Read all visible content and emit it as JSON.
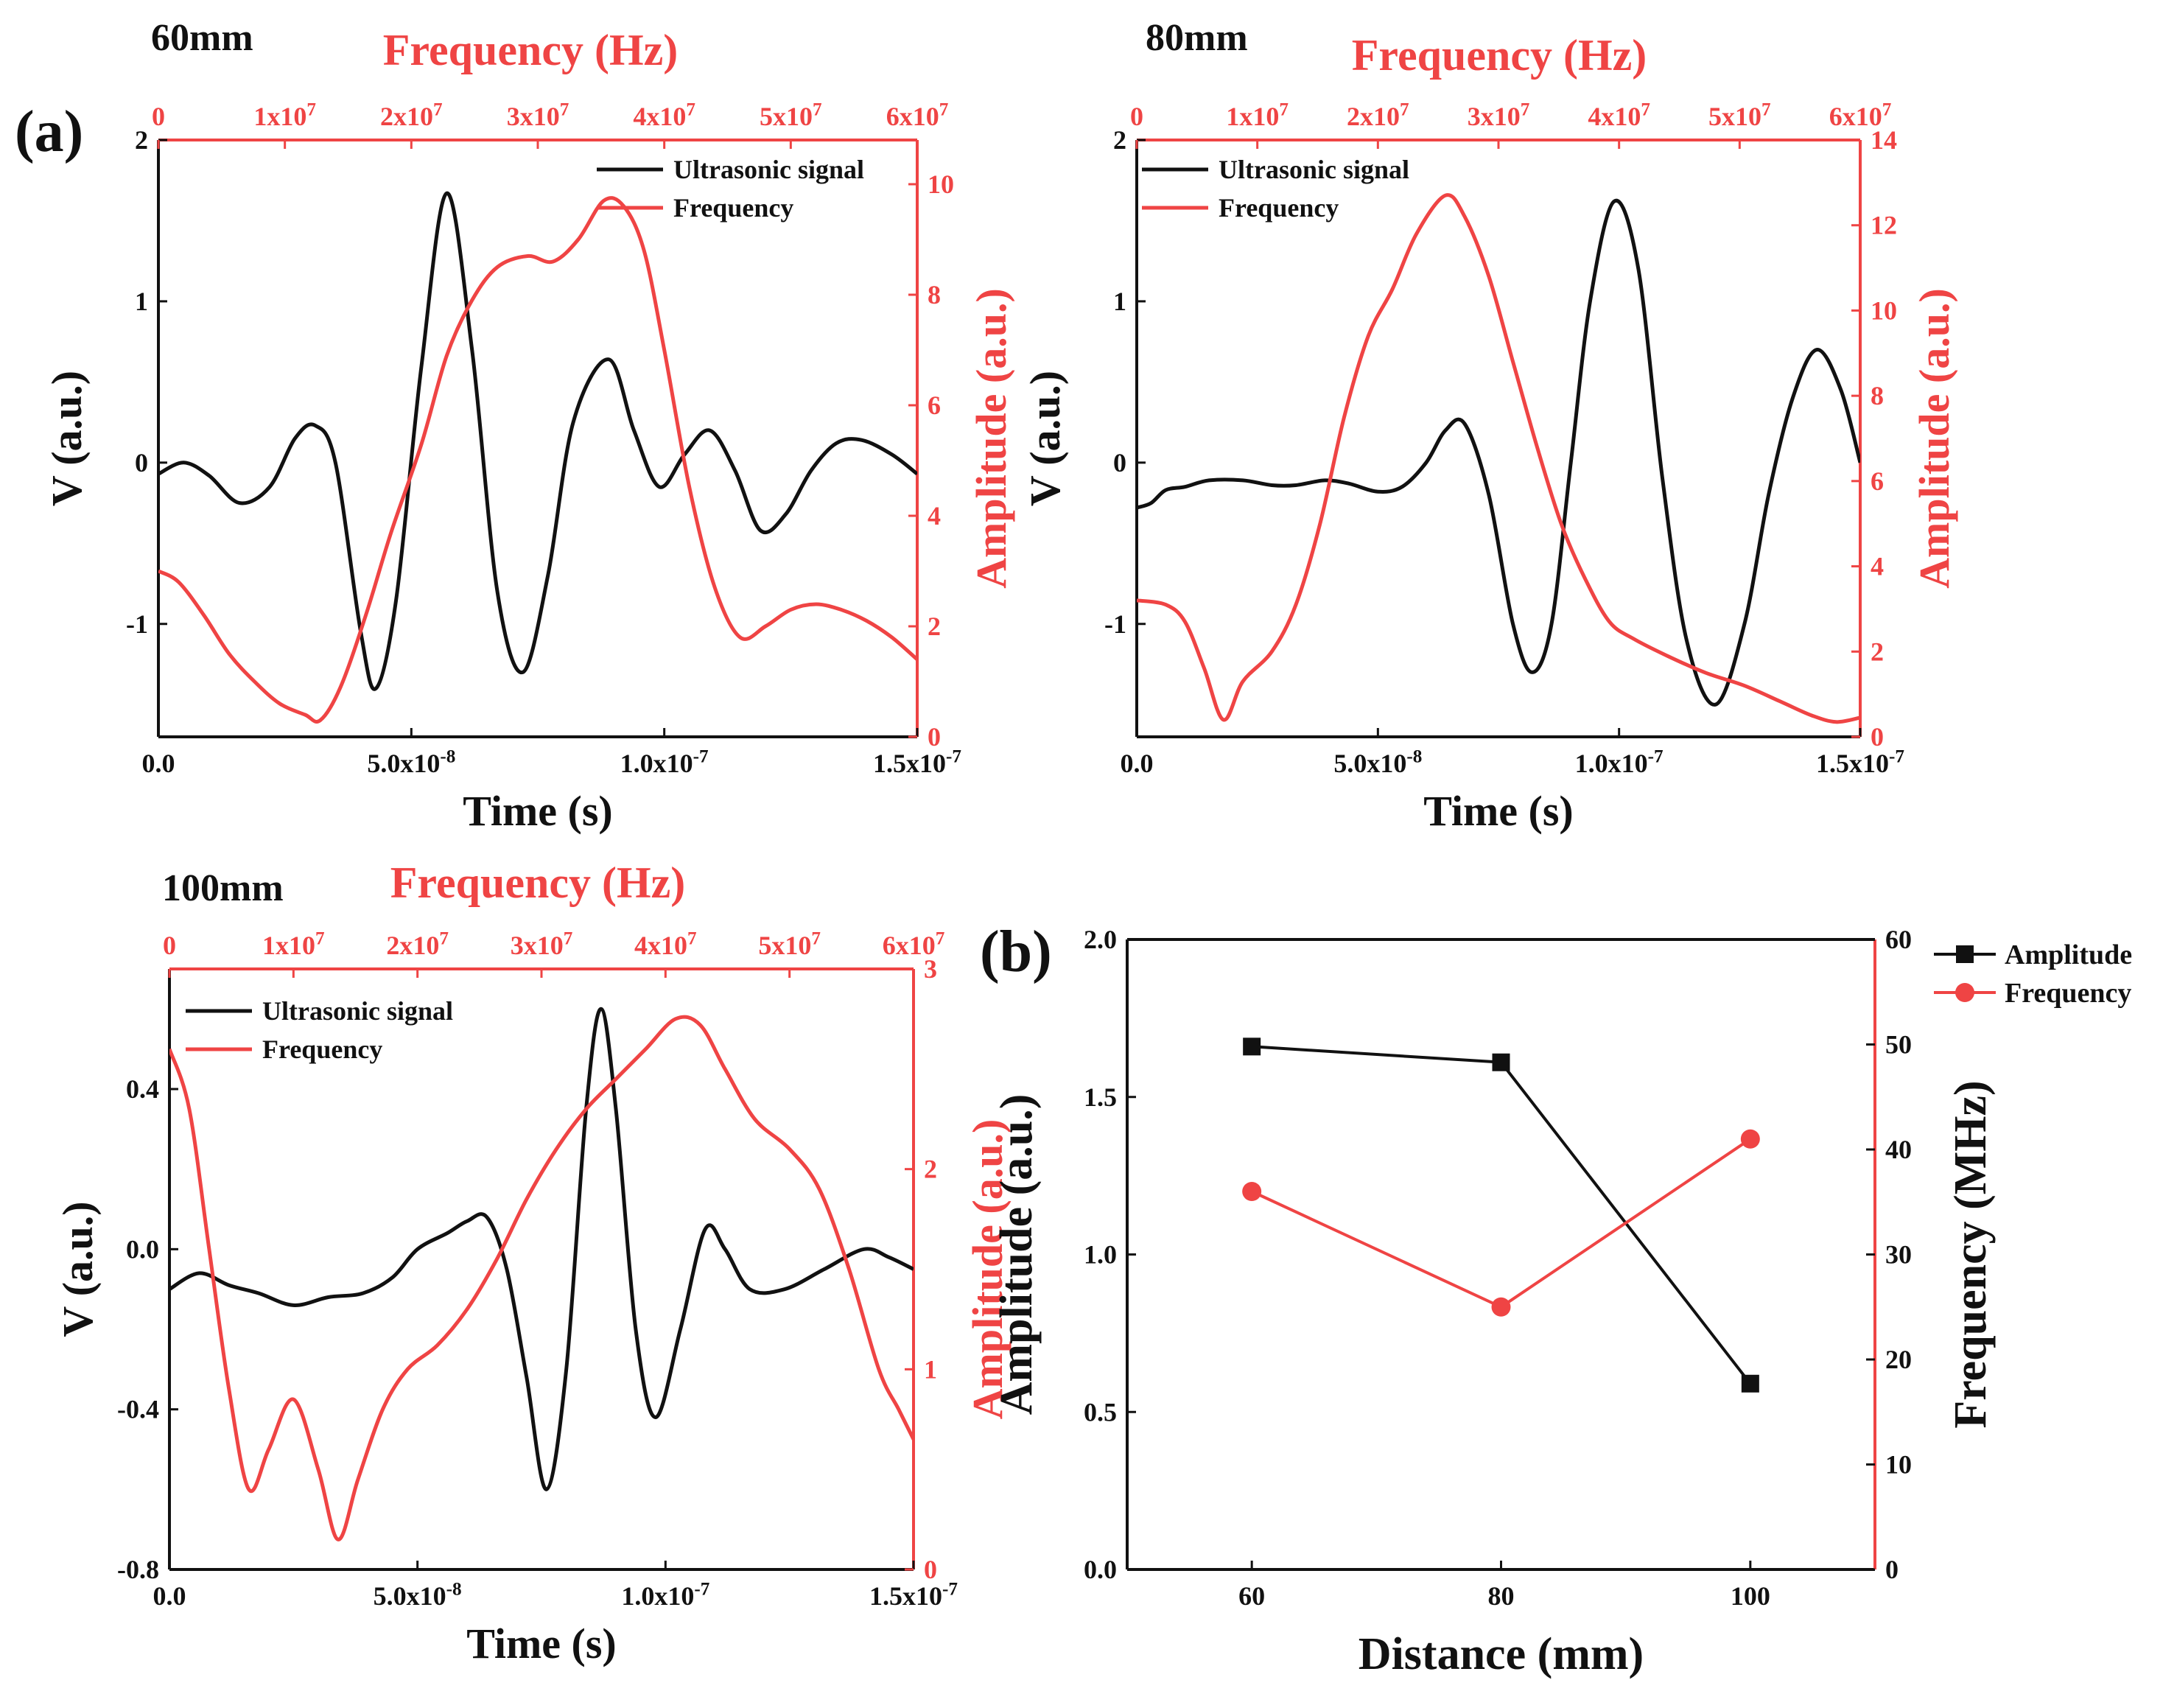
{
  "colors": {
    "black": "#111111",
    "red": "#ef4444"
  },
  "panel_a_label": "(a)",
  "panel_b_label": "(b)",
  "chart_data": [
    {
      "type": "line",
      "title": "60mm",
      "xlabel": "Time (s)",
      "ylabel": "V (a.u.)",
      "y2label": "Amplitude (a.u.)",
      "x2label": "Frequency (Hz)",
      "xlim": [
        0,
        1.5e-07
      ],
      "ylim": [
        -1.7,
        2.0
      ],
      "y2lim": [
        0,
        10.8
      ],
      "x2lim": [
        0,
        60000000.0
      ],
      "xticks": [
        0,
        5e-08,
        1e-07,
        1.5e-07
      ],
      "xtick_labels": [
        "0.0",
        "5.0x10-8",
        "1.0x10-7",
        "1.5x10-7"
      ],
      "yticks": [
        -1,
        0,
        1,
        2
      ],
      "ytick_labels": [
        "-1",
        "0",
        "1",
        "2"
      ],
      "y2ticks": [
        0,
        2,
        4,
        6,
        8,
        10
      ],
      "y2tick_labels": [
        "0",
        "2",
        "4",
        "6",
        "8",
        "10"
      ],
      "x2ticks": [
        0,
        10000000.0,
        20000000.0,
        30000000.0,
        40000000.0,
        50000000.0,
        60000000.0
      ],
      "x2tick_labels": [
        "0",
        "1x107",
        "2x107",
        "3x107",
        "4x107",
        "5x107",
        "6x107"
      ],
      "legend": [
        "Ultrasonic signal",
        "Frequency"
      ],
      "legend_position": "top-right",
      "series": [
        {
          "name": "Ultrasonic signal",
          "color": "black",
          "axis": "left",
          "x": [
            0,
            5e-09,
            1e-08,
            1.6e-08,
            2.2e-08,
            2.7e-08,
            3.1e-08,
            3.5e-08,
            4e-08,
            4.3e-08,
            4.7e-08,
            5.2e-08,
            5.7e-08,
            6.2e-08,
            6.7e-08,
            7.2e-08,
            7.7e-08,
            8.2e-08,
            8.9e-08,
            9.4e-08,
            9.9e-08,
            1.04e-07,
            1.09e-07,
            1.14e-07,
            1.19e-07,
            1.24e-07,
            1.29e-07,
            1.34e-07,
            1.39e-07,
            1.45e-07,
            1.5e-07
          ],
          "y": [
            -0.07,
            0,
            -0.08,
            -0.25,
            -0.15,
            0.15,
            0.23,
            0.0,
            -1.05,
            -1.4,
            -0.85,
            0.6,
            1.67,
            0.7,
            -0.8,
            -1.3,
            -0.7,
            0.25,
            0.64,
            0.2,
            -0.15,
            0.05,
            0.2,
            -0.05,
            -0.42,
            -0.32,
            -0.05,
            0.12,
            0.14,
            0.05,
            -0.07
          ]
        },
        {
          "name": "Frequency",
          "color": "red",
          "axis": "right",
          "x": [
            0,
            4e-09,
            9e-09,
            1.4e-08,
            1.9e-08,
            2.4e-08,
            2.9e-08,
            3.2e-08,
            3.6e-08,
            4.1e-08,
            4.6e-08,
            5.2e-08,
            5.7e-08,
            6.2e-08,
            6.7e-08,
            7.3e-08,
            7.8e-08,
            8.3e-08,
            8.8e-08,
            9.2e-08,
            9.6e-08,
            1e-07,
            1.05e-07,
            1.1e-07,
            1.15e-07,
            1.2e-07,
            1.25e-07,
            1.3e-07,
            1.35e-07,
            1.4e-07,
            1.45e-07,
            1.5e-07
          ],
          "y": [
            3.0,
            2.8,
            2.2,
            1.5,
            1.0,
            0.6,
            0.4,
            0.3,
            0.9,
            2.2,
            3.7,
            5.3,
            6.9,
            7.9,
            8.5,
            8.7,
            8.6,
            9.0,
            9.7,
            9.6,
            8.8,
            7.0,
            4.5,
            2.7,
            1.8,
            2.0,
            2.3,
            2.4,
            2.3,
            2.1,
            1.8,
            1.4
          ]
        }
      ]
    },
    {
      "type": "line",
      "title": "80mm",
      "xlabel": "Time (s)",
      "ylabel": "V (a.u.)",
      "y2label": "Amplitude (a.u.)",
      "x2label": "Frequency (Hz)",
      "xlim": [
        0,
        1.5e-07
      ],
      "ylim": [
        -1.7,
        2.0
      ],
      "y2lim": [
        0,
        14
      ],
      "x2lim": [
        0,
        60000000.0
      ],
      "xticks": [
        0,
        5e-08,
        1e-07,
        1.5e-07
      ],
      "xtick_labels": [
        "0.0",
        "5.0x10-8",
        "1.0x10-7",
        "1.5x10-7"
      ],
      "yticks": [
        -1,
        0,
        1,
        2
      ],
      "ytick_labels": [
        "-1",
        "0",
        "1",
        "2"
      ],
      "y2ticks": [
        0,
        2,
        4,
        6,
        8,
        10,
        12,
        14
      ],
      "y2tick_labels": [
        "0",
        "2",
        "4",
        "6",
        "8",
        "10",
        "12",
        "14"
      ],
      "x2ticks": [
        0,
        10000000.0,
        20000000.0,
        30000000.0,
        40000000.0,
        50000000.0,
        60000000.0
      ],
      "x2tick_labels": [
        "0",
        "1x107",
        "2x107",
        "3x107",
        "4x107",
        "5x107",
        "6x107"
      ],
      "legend": [
        "Ultrasonic signal",
        "Frequency"
      ],
      "legend_position": "top-left",
      "series": [
        {
          "name": "Ultrasonic signal",
          "color": "black",
          "axis": "left",
          "x": [
            0,
            3e-09,
            6e-09,
            1e-08,
            1.5e-08,
            2.2e-08,
            2.8e-08,
            3.3e-08,
            3.9e-08,
            4.4e-08,
            5e-08,
            5.5e-08,
            6e-08,
            6.4e-08,
            6.8e-08,
            7.3e-08,
            7.8e-08,
            8.2e-08,
            8.6e-08,
            9e-08,
            9.4e-08,
            9.9e-08,
            1.04e-07,
            1.09e-07,
            1.14e-07,
            1.2e-07,
            1.26e-07,
            1.31e-07,
            1.36e-07,
            1.41e-07,
            1.46e-07,
            1.5e-07
          ],
          "y": [
            -0.28,
            -0.25,
            -0.17,
            -0.15,
            -0.11,
            -0.11,
            -0.14,
            -0.14,
            -0.11,
            -0.13,
            -0.18,
            -0.15,
            0.0,
            0.2,
            0.24,
            -0.2,
            -1.0,
            -1.3,
            -1.0,
            0.0,
            1.0,
            1.62,
            1.2,
            -0.1,
            -1.1,
            -1.5,
            -1.0,
            -0.2,
            0.4,
            0.7,
            0.45,
            0.0
          ]
        },
        {
          "name": "Frequency",
          "color": "red",
          "axis": "right",
          "x": [
            0,
            6e-09,
            1e-08,
            1.4e-08,
            1.8e-08,
            2.2e-08,
            2.8e-08,
            3.3e-08,
            3.8e-08,
            4.3e-08,
            4.8e-08,
            5.3e-08,
            5.8e-08,
            6.4e-08,
            6.8e-08,
            7.3e-08,
            7.8e-08,
            8.3e-08,
            8.8e-08,
            9.3e-08,
            9.8e-08,
            1.03e-07,
            1.1e-07,
            1.18e-07,
            1.26e-07,
            1.34e-07,
            1.4e-07,
            1.45e-07,
            1.5e-07
          ],
          "y": [
            3.2,
            3.1,
            2.7,
            1.6,
            0.4,
            1.3,
            2.0,
            3.1,
            5.0,
            7.5,
            9.4,
            10.5,
            11.8,
            12.7,
            12.2,
            10.8,
            8.8,
            6.8,
            5.0,
            3.7,
            2.7,
            2.3,
            1.9,
            1.5,
            1.2,
            0.8,
            0.5,
            0.35,
            0.45
          ]
        }
      ]
    },
    {
      "type": "line",
      "title": "100mm",
      "xlabel": "Time (s)",
      "ylabel": "V (a.u.)",
      "y2label": "Amplitude (a.u.)",
      "x2label": "Frequency (Hz)",
      "xlim": [
        0,
        1.5e-07
      ],
      "ylim": [
        -0.8,
        0.7
      ],
      "y2lim": [
        0,
        3
      ],
      "x2lim": [
        0,
        60000000.0
      ],
      "xticks": [
        0,
        5e-08,
        1e-07,
        1.5e-07
      ],
      "xtick_labels": [
        "0.0",
        "5.0x10-8",
        "1.0x10-7",
        "1.5x10-7"
      ],
      "yticks": [
        -0.8,
        -0.4,
        0.0,
        0.4
      ],
      "ytick_labels": [
        "-0.8",
        "-0.4",
        "0.0",
        "0.4"
      ],
      "y2ticks": [
        0,
        1,
        2,
        3
      ],
      "y2tick_labels": [
        "0",
        "1",
        "2",
        "3"
      ],
      "x2ticks": [
        0,
        10000000.0,
        20000000.0,
        30000000.0,
        40000000.0,
        50000000.0,
        60000000.0
      ],
      "x2tick_labels": [
        "0",
        "1x107",
        "2x107",
        "3x107",
        "4x107",
        "5x107",
        "6x107"
      ],
      "legend": [
        "Ultrasonic signal",
        "Frequency"
      ],
      "legend_position": "top-left",
      "series": [
        {
          "name": "Ultrasonic signal",
          "color": "black",
          "axis": "left",
          "x": [
            0,
            6e-09,
            1.2e-08,
            1.8e-08,
            2.5e-08,
            3.2e-08,
            3.9e-08,
            4.5e-08,
            5e-08,
            5.6e-08,
            6e-08,
            6.4e-08,
            6.8e-08,
            7.2e-08,
            7.6e-08,
            8e-08,
            8.4e-08,
            8.7e-08,
            9e-08,
            9.4e-08,
            9.8e-08,
            1.03e-07,
            1.08e-07,
            1.12e-07,
            1.17e-07,
            1.24e-07,
            1.32e-07,
            1.4e-07,
            1.45e-07,
            1.5e-07
          ],
          "y": [
            -0.1,
            -0.06,
            -0.09,
            -0.11,
            -0.14,
            -0.12,
            -0.11,
            -0.07,
            0.0,
            0.04,
            0.07,
            0.08,
            -0.05,
            -0.32,
            -0.6,
            -0.3,
            0.35,
            0.6,
            0.35,
            -0.2,
            -0.42,
            -0.2,
            0.05,
            0.0,
            -0.1,
            -0.1,
            -0.05,
            0.0,
            -0.02,
            -0.05
          ]
        },
        {
          "name": "Frequency",
          "color": "red",
          "axis": "right",
          "x": [
            0,
            4e-09,
            8e-09,
            1.2e-08,
            1.6e-08,
            2e-08,
            2.5e-08,
            3e-08,
            3.4e-08,
            3.8e-08,
            4.3e-08,
            4.8e-08,
            5.4e-08,
            6e-08,
            6.6e-08,
            7.2e-08,
            7.8e-08,
            8.4e-08,
            9e-08,
            9.6e-08,
            1.02e-07,
            1.07e-07,
            1.12e-07,
            1.18e-07,
            1.25e-07,
            1.31e-07,
            1.37e-07,
            1.43e-07,
            1.47e-07,
            1.5e-07
          ],
          "y": [
            2.6,
            2.3,
            1.6,
            0.9,
            0.4,
            0.6,
            0.85,
            0.5,
            0.15,
            0.45,
            0.8,
            1.0,
            1.12,
            1.3,
            1.55,
            1.85,
            2.1,
            2.3,
            2.45,
            2.6,
            2.75,
            2.72,
            2.5,
            2.25,
            2.1,
            1.9,
            1.5,
            1.0,
            0.8,
            0.65
          ]
        }
      ]
    },
    {
      "type": "line",
      "xlabel": "Distance (mm)",
      "ylabel": "Amplitude (a.u.)",
      "y2label": "Frequency (MHz)",
      "categories": [
        "60",
        "80",
        "100"
      ],
      "xlim": [
        50,
        110
      ],
      "ylim": [
        0.0,
        2.0
      ],
      "y2lim": [
        0,
        60
      ],
      "xticks": [
        60,
        80,
        100
      ],
      "xtick_labels": [
        "60",
        "80",
        "100"
      ],
      "yticks": [
        0.0,
        0.5,
        1.0,
        1.5,
        2.0
      ],
      "ytick_labels": [
        "0.0",
        "0.5",
        "1.0",
        "1.5",
        "2.0"
      ],
      "y2ticks": [
        0,
        10,
        20,
        30,
        40,
        50,
        60
      ],
      "y2tick_labels": [
        "0",
        "10",
        "20",
        "30",
        "40",
        "50",
        "60"
      ],
      "legend": [
        "Amplitude",
        "Frequency"
      ],
      "legend_position": "top-right-outside",
      "series": [
        {
          "name": "Amplitude",
          "color": "black",
          "axis": "left",
          "marker": "square",
          "x": [
            60,
            80,
            100
          ],
          "y": [
            1.66,
            1.61,
            0.59
          ]
        },
        {
          "name": "Frequency",
          "color": "red",
          "axis": "right",
          "marker": "circle",
          "x": [
            60,
            80,
            100
          ],
          "y": [
            36,
            25,
            41
          ]
        }
      ]
    }
  ]
}
